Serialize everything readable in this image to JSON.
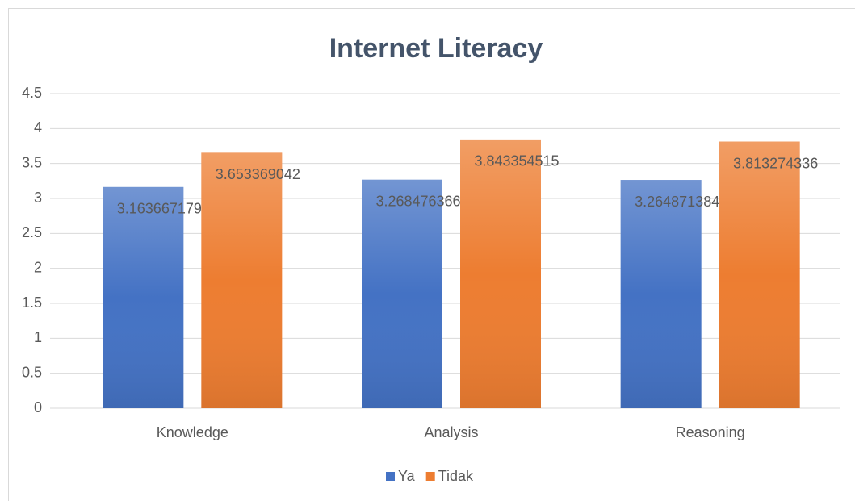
{
  "chart_data": {
    "type": "bar",
    "title": "Internet Literacy",
    "categories": [
      "Knowledge",
      "Analysis",
      "Reasoning"
    ],
    "series": [
      {
        "name": "Ya",
        "color": "#4472c4",
        "values": [
          3.163667179,
          3.268476366,
          3.264871384
        ]
      },
      {
        "name": "Tidak",
        "color": "#ed7d31",
        "values": [
          3.653369042,
          3.843354515,
          3.813274336
        ]
      }
    ],
    "ylim": [
      0,
      4.5
    ],
    "yticks": [
      0,
      0.5,
      1,
      1.5,
      2,
      2.5,
      3,
      3.5,
      4,
      4.5
    ],
    "grid": true,
    "legend": "bottom"
  }
}
